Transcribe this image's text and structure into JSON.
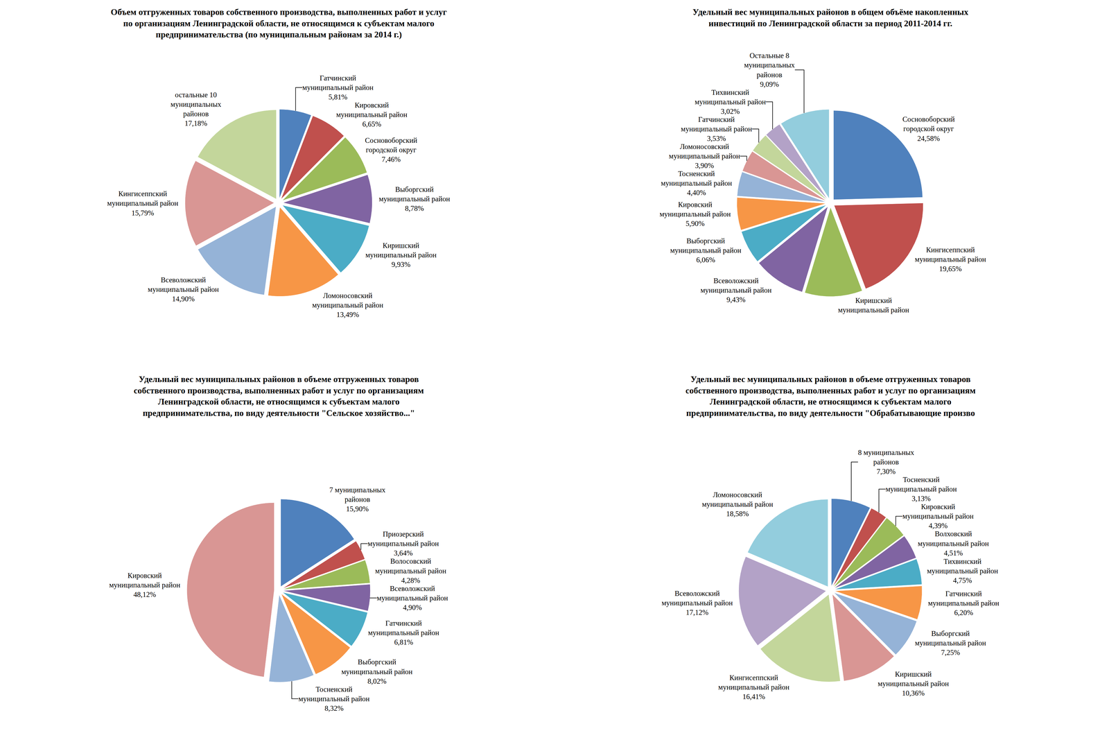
{
  "chart_data": [
    {
      "type": "pie",
      "title": "Объем отгруженных товаров собственного производства, выполненных работ и услуг по организациям Ленинградской области, не относящимся к субъектам малого предпринимательства (по муниципальным районам за 2014 г.)",
      "categories": [
        "Гатчинский муниципальный район",
        "Кировский муниципальный район",
        "Сосновоборский городской округ",
        "Выборгский муниципальный район",
        "Киришский муниципальный район",
        "Ломоносовский муниципальный район",
        "Всеволожский муниципальный район",
        "Кингисеппский муниципальный район",
        "остальные 10 муниципальных районов"
      ],
      "values": [
        5.81,
        6.65,
        7.46,
        8.78,
        9.93,
        13.49,
        14.9,
        15.79,
        17.18
      ],
      "value_labels": [
        "5,81%",
        "6,65%",
        "7,46%",
        "8,78%",
        "9,93%",
        "13,49%",
        "14,90%",
        "15,79%",
        "17,18%"
      ],
      "colors": [
        "#4F81BD",
        "#C0504D",
        "#9BBB59",
        "#8064A2",
        "#4BACC6",
        "#F79646",
        "#95B3D7",
        "#D99694",
        "#C3D69B"
      ],
      "data_labels": true
    },
    {
      "type": "pie",
      "title": "Удельный вес муниципальных районов в общем объёме накопленных инвестиций по Ленинградской области за период 2011-2014 гг.",
      "categories": [
        "Сосновоборский городской округ",
        "Кингисеппский муниципальный район",
        "Киришский муниципальный район",
        "Всеволожский муниципальный район",
        "Выборгский муниципальный район",
        "Кировский муниципальный район",
        "Тосненский муниципальный район",
        "Ломоносовский муниципальный район",
        "Гатчинский муниципальный район",
        "Тихвинский муниципальный район",
        "Остальные 8 муниципальных районов"
      ],
      "values": [
        24.58,
        19.65,
        10.44,
        9.43,
        6.06,
        5.9,
        4.4,
        3.9,
        3.53,
        3.02,
        9.09
      ],
      "value_labels": [
        "24,58%",
        "19,65%",
        null,
        "9,43%",
        "6,06%",
        "5,90%",
        "4,40%",
        "3,90%",
        "3,53%",
        "3,02%",
        "9,09%"
      ],
      "colors": [
        "#4F81BD",
        "#C0504D",
        "#9BBB59",
        "#8064A2",
        "#4BACC6",
        "#F79646",
        "#95B3D7",
        "#D99694",
        "#C3D69B",
        "#B3A2C7",
        "#93CDDD"
      ],
      "data_labels": true
    },
    {
      "type": "pie",
      "title": "Удельный вес муниципальных районов в объеме отгруженных товаров собственного производства, выполненных работ и услуг по организациям Ленинградской области, не относящимся к субъектам малого предпринимательства, по виду деятельности \"Сельское хозяйство...\"",
      "categories": [
        "7 муниципальных районов",
        "Приозерский муниципальный район",
        "Волосовский муниципальный район",
        "Всеволожский муниципальный район",
        "Гатчинский муниципальный район",
        "Выборгский муниципальный район",
        "Тосненский муниципальный район",
        "Кировский муниципальный район"
      ],
      "values": [
        15.9,
        3.64,
        4.28,
        4.9,
        6.81,
        8.02,
        8.32,
        48.12
      ],
      "value_labels": [
        "15,90%",
        "3,64%",
        "4,28%",
        "4,90%",
        "6,81%",
        "8,02%",
        "8,32%",
        "48,12%"
      ],
      "colors": [
        "#4F81BD",
        "#C0504D",
        "#9BBB59",
        "#8064A2",
        "#4BACC6",
        "#F79646",
        "#95B3D7",
        "#D99694"
      ],
      "data_labels": true
    },
    {
      "type": "pie",
      "title": "Удельный вес муниципальных районов в объеме отгруженных товаров собственного производства, выполненных работ и услуг по организациям Ленинградской области, не относящимся к субъектам малого предпринимательства, по виду деятельности \"Обрабатывающие произво",
      "categories": [
        "8 муниципальных районов",
        "Тосненский муниципальный район",
        "Кировский муниципальный район",
        "Волховский муниципальный район",
        "Тихвинский муниципальный район",
        "Гатчинский муниципальный район",
        "Выборгский муниципальный район",
        "Киришский муниципальный район",
        "Кингисеппский муниципальный район",
        "Всеволожский муниципальный район",
        "Ломоносовский муниципальный район"
      ],
      "values": [
        7.3,
        3.13,
        4.39,
        4.51,
        4.75,
        6.2,
        7.25,
        10.36,
        16.41,
        17.12,
        18.58
      ],
      "value_labels": [
        "7,30%",
        "3,13%",
        "4,39%",
        "4,51%",
        "4,75%",
        "6,20%",
        "7,25%",
        "10,36%",
        "16,41%",
        "17,12%",
        "18,58%"
      ],
      "colors": [
        "#4F81BD",
        "#C0504D",
        "#9BBB59",
        "#8064A2",
        "#4BACC6",
        "#F79646",
        "#95B3D7",
        "#D99694",
        "#C3D69B",
        "#B3A2C7",
        "#93CDDD"
      ],
      "data_labels": true
    }
  ]
}
